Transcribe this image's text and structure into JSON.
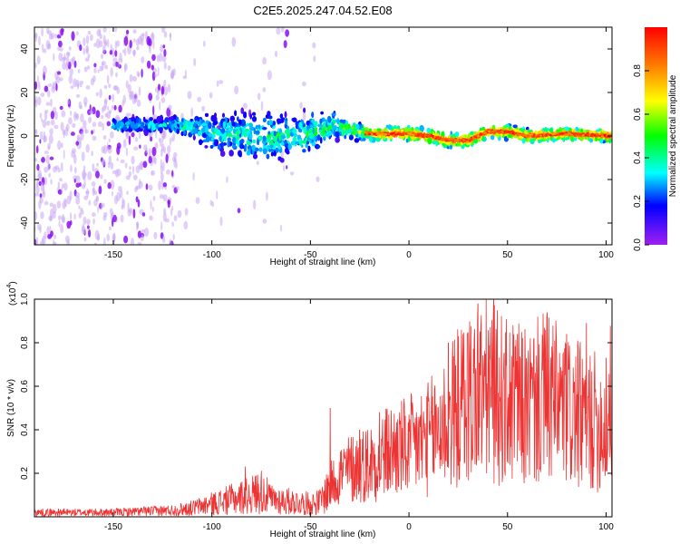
{
  "chart_data": [
    {
      "type": "heatmap",
      "title": "C2E5.2025.247.04.52.E08",
      "xlabel": "Height of straight line (km)",
      "ylabel": "Frequency (Hz)",
      "xlim": [
        -190,
        103
      ],
      "ylim": [
        -50,
        50
      ],
      "xticks": [
        -150,
        -100,
        -50,
        0,
        50,
        100
      ],
      "yticks": [
        -40,
        -20,
        0,
        20,
        40
      ],
      "colorbar": {
        "label": "Normalized spectral amplitude",
        "range": [
          0,
          1
        ],
        "ticks": [
          0.0,
          0.2,
          0.4,
          0.6,
          0.8
        ],
        "tick_labels": [
          "0.0",
          "0.2",
          "0.4",
          "0.6",
          "0.8"
        ],
        "colormap": [
          "#a020f0",
          "#0000ff",
          "#00ffff",
          "#00ff00",
          "#ffff00",
          "#ff8000",
          "#ff0000"
        ]
      },
      "ridge": {
        "description": "dominant frequency trace near 0 Hz",
        "points": [
          [
            -150,
            5
          ],
          [
            -130,
            5
          ],
          [
            -115,
            5
          ],
          [
            -100,
            2
          ],
          [
            -80,
            0
          ],
          [
            -60,
            0
          ],
          [
            -45,
            2
          ],
          [
            -38,
            5
          ],
          [
            -30,
            3
          ],
          [
            -20,
            1
          ],
          [
            0,
            1
          ],
          [
            10,
            0
          ],
          [
            20,
            -2
          ],
          [
            30,
            -2
          ],
          [
            40,
            2
          ],
          [
            50,
            2
          ],
          [
            60,
            0
          ],
          [
            80,
            1
          ],
          [
            103,
            0
          ]
        ]
      },
      "band_halfwidth": [
        [
          -120,
          4
        ],
        [
          -100,
          10
        ],
        [
          -80,
          14
        ],
        [
          -60,
          12
        ],
        [
          -45,
          10
        ],
        [
          -35,
          6
        ],
        [
          -20,
          4
        ],
        [
          103,
          3
        ]
      ],
      "peak_amplitude": [
        [
          -150,
          0.3
        ],
        [
          -120,
          0.35
        ],
        [
          -100,
          0.35
        ],
        [
          -80,
          0.4
        ],
        [
          -60,
          0.4
        ],
        [
          -40,
          0.45
        ],
        [
          -25,
          0.6
        ],
        [
          -10,
          0.85
        ],
        [
          50,
          0.85
        ],
        [
          103,
          0.85
        ]
      ]
    },
    {
      "type": "line",
      "xlabel": "Height of straight line (km)",
      "ylabel": "SNR (10 * v/v)",
      "exponent_label": "(x10",
      "exponent": "4",
      "xlim": [
        -190,
        103
      ],
      "ylim": [
        0,
        1.0
      ],
      "xticks": [
        -150,
        -100,
        -50,
        0,
        50,
        100
      ],
      "yticks": [
        0.2,
        0.4,
        0.6,
        0.8,
        1.0
      ],
      "ytick_labels": [
        "0.2",
        "0.4",
        "0.6",
        "0.8",
        "1.0"
      ],
      "color": "#ee3333",
      "series": [
        {
          "name": "SNR",
          "x": [
            -190,
            -150,
            -120,
            -110,
            -100,
            -90,
            -80,
            -75,
            -70,
            -60,
            -50,
            -45,
            -40,
            -35,
            -30,
            -20,
            -10,
            0,
            10,
            20,
            30,
            40,
            50,
            60,
            70,
            80,
            90,
            100,
            103
          ],
          "y": [
            0.02,
            0.02,
            0.03,
            0.04,
            0.06,
            0.08,
            0.1,
            0.12,
            0.08,
            0.07,
            0.06,
            0.07,
            0.14,
            0.2,
            0.22,
            0.25,
            0.3,
            0.32,
            0.36,
            0.45,
            0.55,
            0.58,
            0.52,
            0.5,
            0.55,
            0.48,
            0.45,
            0.42,
            0.55
          ]
        }
      ],
      "peaks": [
        [
          -83,
          0.23
        ],
        [
          -40,
          0.5
        ],
        [
          -25,
          0.4
        ],
        [
          -15,
          0.48
        ],
        [
          0,
          0.47
        ],
        [
          20,
          0.8
        ],
        [
          35,
          0.98
        ],
        [
          43,
          1.0
        ],
        [
          55,
          0.84
        ],
        [
          70,
          0.92
        ],
        [
          80,
          0.84
        ],
        [
          90,
          0.89
        ],
        [
          100,
          0.73
        ]
      ]
    }
  ]
}
